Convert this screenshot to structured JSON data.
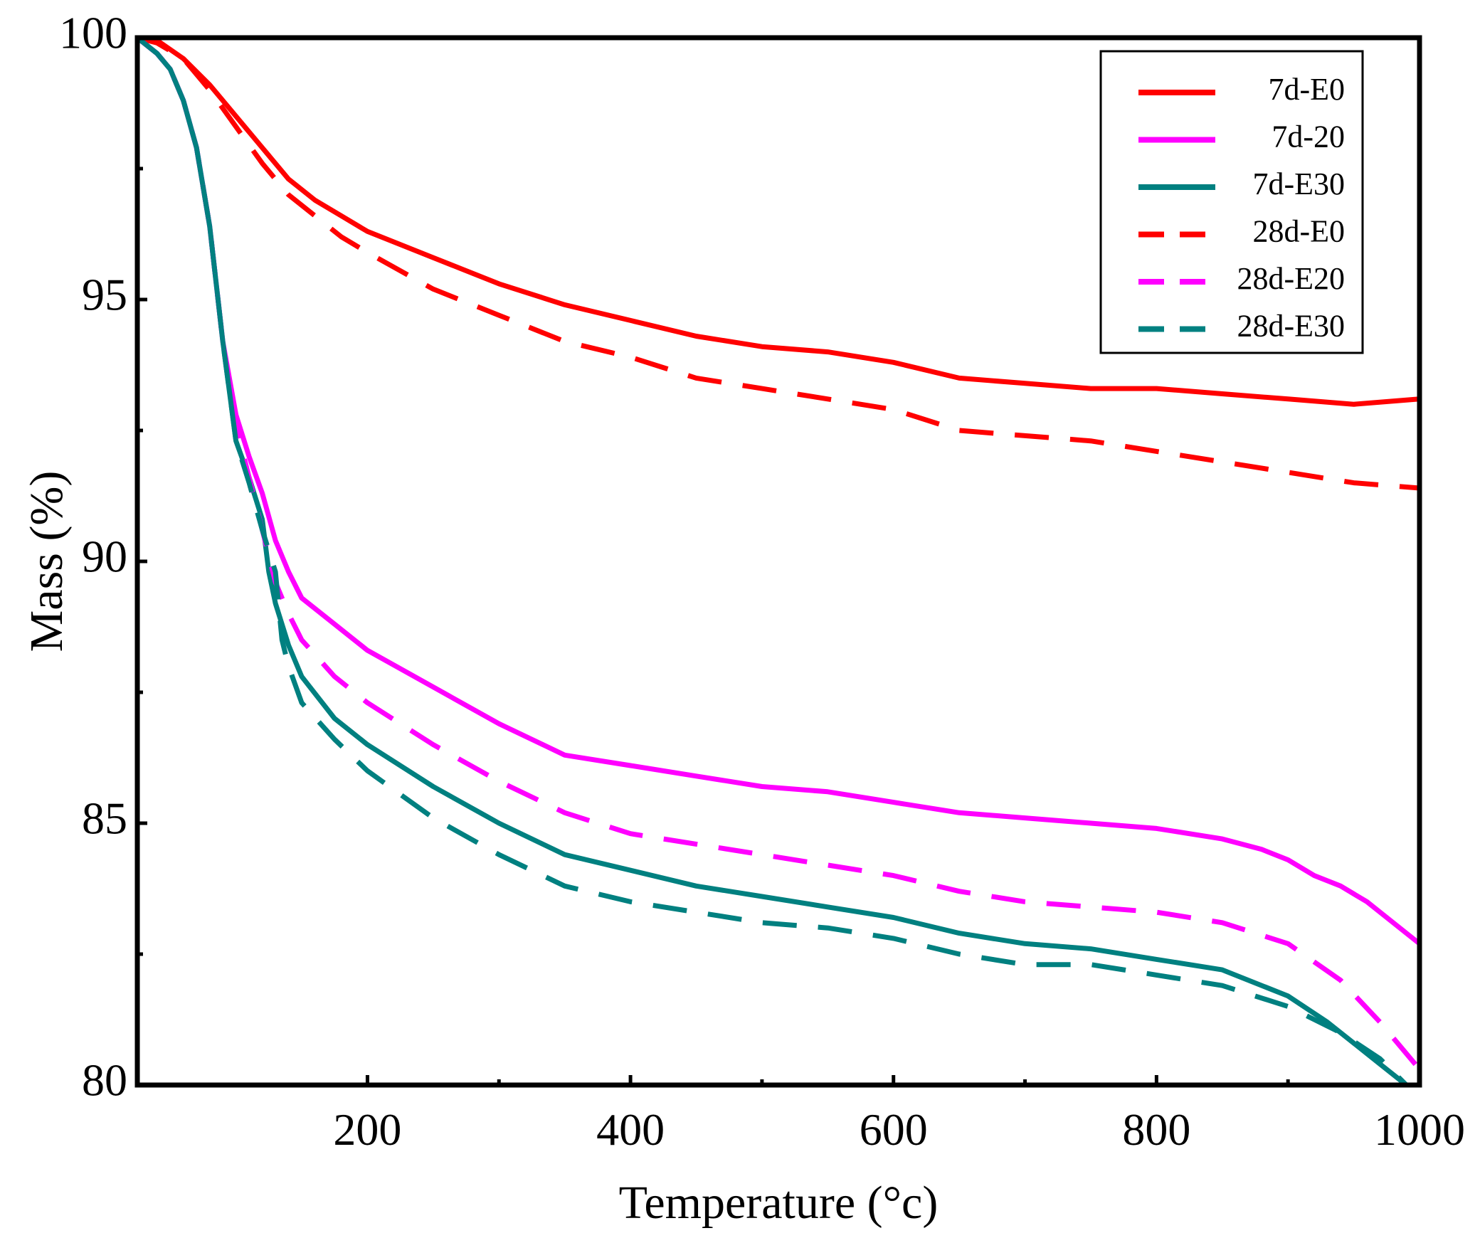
{
  "chart_data": {
    "type": "line",
    "title": "",
    "xlabel": "Temperature (°c)",
    "ylabel": "Mass (%)",
    "xlim": [
      25,
      1000
    ],
    "ylim": [
      80,
      100
    ],
    "xticks": [
      200,
      400,
      600,
      800,
      1000
    ],
    "yticks": [
      80,
      85,
      90,
      95,
      100
    ],
    "xtick_labels": [
      "200",
      "400",
      "600",
      "800",
      "1000"
    ],
    "ytick_labels": [
      "80",
      "85",
      "90",
      "95",
      "100"
    ],
    "grid": false,
    "legend_position": "top-right",
    "series": [
      {
        "name": "7d-E0",
        "color": "#ff0000",
        "dash": "solid",
        "x": [
          25,
          40,
          60,
          80,
          100,
          120,
          140,
          160,
          180,
          200,
          250,
          300,
          350,
          400,
          450,
          500,
          550,
          600,
          650,
          700,
          750,
          800,
          850,
          900,
          950,
          1000
        ],
        "y": [
          100,
          99.95,
          99.6,
          99.1,
          98.5,
          97.9,
          97.3,
          96.9,
          96.6,
          96.3,
          95.8,
          95.3,
          94.9,
          94.6,
          94.3,
          94.1,
          94.0,
          93.8,
          93.5,
          93.4,
          93.3,
          93.3,
          93.2,
          93.1,
          93.0,
          93.1
        ]
      },
      {
        "name": "7d-20",
        "color": "#ff00ff",
        "dash": "solid",
        "x": [
          25,
          40,
          50,
          60,
          70,
          80,
          90,
          100,
          110,
          120,
          130,
          140,
          150,
          175,
          200,
          250,
          300,
          350,
          400,
          450,
          500,
          550,
          600,
          650,
          700,
          750,
          800,
          850,
          880,
          900,
          920,
          940,
          960,
          980,
          1000
        ],
        "y": [
          100,
          99.7,
          99.4,
          98.8,
          97.9,
          96.4,
          94.2,
          92.8,
          92.0,
          91.3,
          90.4,
          89.8,
          89.3,
          88.8,
          88.3,
          87.6,
          86.9,
          86.3,
          86.1,
          85.9,
          85.7,
          85.6,
          85.4,
          85.2,
          85.1,
          85.0,
          84.9,
          84.7,
          84.5,
          84.3,
          84.0,
          83.8,
          83.5,
          83.1,
          82.7
        ]
      },
      {
        "name": "7d-E30",
        "color": "#008080",
        "dash": "solid",
        "x": [
          25,
          40,
          50,
          60,
          70,
          80,
          90,
          100,
          110,
          120,
          125,
          130,
          140,
          150,
          175,
          200,
          250,
          300,
          350,
          400,
          450,
          500,
          550,
          600,
          650,
          700,
          750,
          800,
          850,
          900,
          930,
          950,
          970,
          990
        ],
        "y": [
          100,
          99.7,
          99.4,
          98.8,
          97.9,
          96.4,
          94.2,
          92.3,
          91.6,
          90.8,
          89.8,
          89.2,
          88.4,
          87.8,
          87.0,
          86.5,
          85.7,
          85.0,
          84.4,
          84.1,
          83.8,
          83.6,
          83.4,
          83.2,
          82.9,
          82.7,
          82.6,
          82.4,
          82.2,
          81.7,
          81.2,
          80.8,
          80.4,
          80.0
        ]
      },
      {
        "name": "28d-E0",
        "color": "#ff0000",
        "dash": "dashed",
        "x": [
          25,
          40,
          60,
          80,
          100,
          120,
          140,
          160,
          180,
          200,
          250,
          300,
          350,
          400,
          450,
          500,
          550,
          600,
          650,
          700,
          750,
          800,
          850,
          900,
          950,
          1000
        ],
        "y": [
          100,
          99.9,
          99.6,
          99.0,
          98.3,
          97.6,
          97.0,
          96.6,
          96.2,
          95.9,
          95.2,
          94.7,
          94.2,
          93.9,
          93.5,
          93.3,
          93.1,
          92.9,
          92.5,
          92.4,
          92.3,
          92.1,
          91.9,
          91.7,
          91.5,
          91.4
        ]
      },
      {
        "name": "28d-E20",
        "color": "#ff00ff",
        "dash": "dashed",
        "x": [
          25,
          40,
          50,
          60,
          70,
          80,
          90,
          100,
          110,
          120,
          130,
          140,
          150,
          175,
          200,
          250,
          300,
          350,
          400,
          450,
          500,
          550,
          600,
          650,
          700,
          750,
          800,
          850,
          900,
          940,
          970,
          1000
        ],
        "y": [
          100,
          99.7,
          99.4,
          98.8,
          97.9,
          96.4,
          94.2,
          92.6,
          91.6,
          90.6,
          89.6,
          89.0,
          88.5,
          87.8,
          87.3,
          86.5,
          85.8,
          85.2,
          84.8,
          84.6,
          84.4,
          84.2,
          84.0,
          83.7,
          83.5,
          83.4,
          83.3,
          83.1,
          82.7,
          82.0,
          81.2,
          80.3
        ]
      },
      {
        "name": "28d-E30",
        "color": "#008080",
        "dash": "dashed",
        "x": [
          25,
          40,
          50,
          60,
          70,
          80,
          90,
          100,
          110,
          120,
          130,
          135,
          140,
          150,
          175,
          200,
          250,
          300,
          350,
          400,
          450,
          500,
          550,
          600,
          650,
          700,
          750,
          800,
          850,
          900,
          940,
          970,
          990
        ],
        "y": [
          100,
          99.7,
          99.4,
          98.8,
          97.9,
          96.4,
          94.2,
          92.3,
          91.5,
          90.6,
          89.8,
          88.5,
          88.0,
          87.3,
          86.6,
          86.0,
          85.1,
          84.4,
          83.8,
          83.5,
          83.3,
          83.1,
          83.0,
          82.8,
          82.5,
          82.3,
          82.3,
          82.1,
          81.9,
          81.5,
          81.0,
          80.5,
          80.0
        ]
      }
    ]
  }
}
